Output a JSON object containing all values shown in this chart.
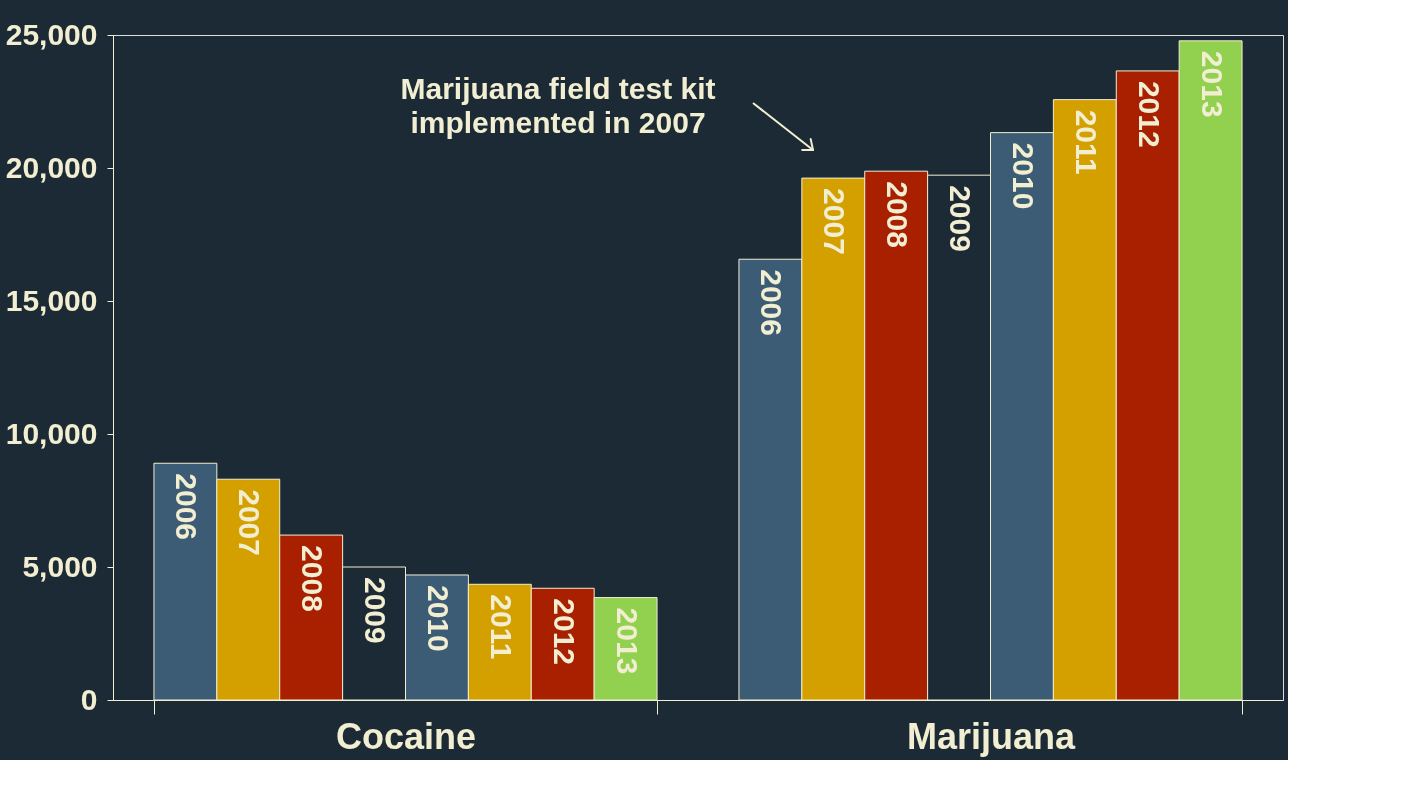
{
  "chart_data": {
    "type": "bar",
    "categories": [
      "Cocaine",
      "Marijuana"
    ],
    "series": [
      {
        "name": "2006",
        "color": "#3b5c74",
        "values": [
          8900,
          16570
        ]
      },
      {
        "name": "2007",
        "color": "#d4a000",
        "values": [
          8300,
          19620
        ]
      },
      {
        "name": "2008",
        "color": "#a82000",
        "values": [
          6200,
          19880
        ]
      },
      {
        "name": "2009",
        "color": "#1c2a35",
        "values": [
          5000,
          19730
        ]
      },
      {
        "name": "2010",
        "color": "#3b5c74",
        "values": [
          4700,
          21330
        ]
      },
      {
        "name": "2011",
        "color": "#d4a000",
        "values": [
          4350,
          22570
        ]
      },
      {
        "name": "2012",
        "color": "#a82000",
        "values": [
          4200,
          23650
        ]
      },
      {
        "name": "2013",
        "color": "#92d050",
        "values": [
          3850,
          24780
        ]
      }
    ],
    "ylim": [
      0,
      25000
    ],
    "yticks": [
      {
        "value": 0,
        "label": "0"
      },
      {
        "value": 5000,
        "label": "5,000"
      },
      {
        "value": 10000,
        "label": "10,000"
      },
      {
        "value": 15000,
        "label": "15,000"
      },
      {
        "value": 20000,
        "label": "20,000"
      },
      {
        "value": 25000,
        "label": "25,000"
      }
    ],
    "annotations": [
      "Marijuana field test kit\nimplemented in 2007"
    ],
    "grid": false,
    "legend": false
  }
}
